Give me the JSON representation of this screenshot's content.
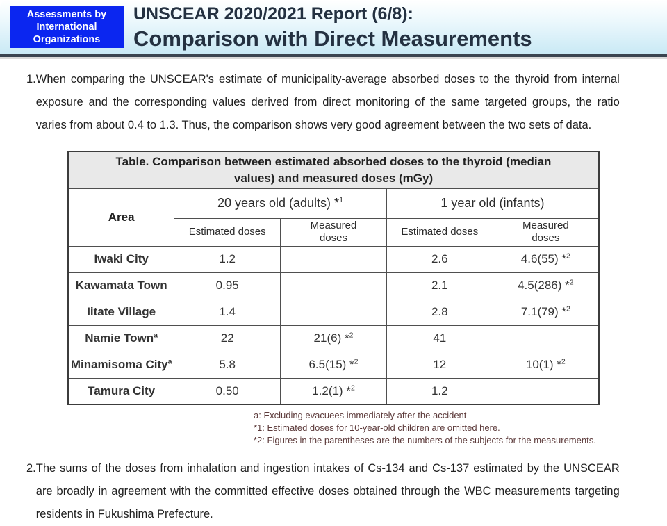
{
  "header": {
    "badge_lines": [
      "Assessments by",
      "International",
      "Organizations"
    ],
    "title_line1": "UNSCEAR 2020/2021 Report (6/8):",
    "title_line2": "Comparison with Direct Measurements"
  },
  "paragraph1": {
    "number": "1.",
    "text": "When comparing the UNSCEAR's estimate of municipality-average absorbed doses to the thyroid from internal exposure and the corresponding values derived from direct monitoring of the same targeted groups, the ratio varies from about 0.4 to 1.3. Thus, the comparison shows very good agreement between the two sets of data."
  },
  "paragraph2": {
    "number": "2.",
    "text": "The sums of the doses from inhalation and ingestion intakes of Cs-134 and Cs-137 estimated by the UNSCEAR are broadly in agreement with the committed effective doses obtained through the WBC measurements targeting residents in Fukushima Prefecture."
  },
  "table": {
    "title": "Table. Comparison between estimated absorbed doses to the thyroid (median values) and measured doses (mGy)",
    "area_label": "Area",
    "adult_header": {
      "main": "20 years old (adults) *",
      "sup": "1"
    },
    "infant_header": {
      "main": "1 year old (infants)",
      "sup": ""
    },
    "sub_headers": [
      "Estimated doses",
      "Measured\ndoses",
      "Estimated doses",
      "Measured\ndoses"
    ],
    "rows": [
      {
        "area": {
          "main": "Iwaki City",
          "sup": ""
        },
        "values": [
          {
            "main": "1.2",
            "sup": ""
          },
          {
            "main": "",
            "sup": ""
          },
          {
            "main": "2.6",
            "sup": ""
          },
          {
            "main": "4.6(55) *",
            "sup": "2"
          }
        ]
      },
      {
        "area": {
          "main": "Kawamata Town",
          "sup": ""
        },
        "values": [
          {
            "main": "0.95",
            "sup": ""
          },
          {
            "main": "",
            "sup": ""
          },
          {
            "main": "2.1",
            "sup": ""
          },
          {
            "main": "4.5(286) *",
            "sup": "2"
          }
        ]
      },
      {
        "area": {
          "main": "Iitate Village",
          "sup": ""
        },
        "values": [
          {
            "main": "1.4",
            "sup": ""
          },
          {
            "main": "",
            "sup": ""
          },
          {
            "main": "2.8",
            "sup": ""
          },
          {
            "main": "7.1(79) *",
            "sup": "2"
          }
        ]
      },
      {
        "area": {
          "main": "Namie Town",
          "sup": "a"
        },
        "values": [
          {
            "main": "22",
            "sup": ""
          },
          {
            "main": "21(6) *",
            "sup": "2"
          },
          {
            "main": "41",
            "sup": ""
          },
          {
            "main": "",
            "sup": ""
          }
        ]
      },
      {
        "area": {
          "main": "Minamisoma City",
          "sup": "a"
        },
        "values": [
          {
            "main": "5.8",
            "sup": ""
          },
          {
            "main": "6.5(15) *",
            "sup": "2"
          },
          {
            "main": "12",
            "sup": ""
          },
          {
            "main": "10(1) *",
            "sup": "2"
          }
        ]
      },
      {
        "area": {
          "main": "Tamura City",
          "sup": ""
        },
        "values": [
          {
            "main": "0.50",
            "sup": ""
          },
          {
            "main": "1.2(1) *",
            "sup": "2"
          },
          {
            "main": "1.2",
            "sup": ""
          },
          {
            "main": "",
            "sup": ""
          }
        ]
      }
    ]
  },
  "footnotes": [
    "a: Excluding evacuees immediately after the accident",
    "*1: Estimated doses for 10-year-old children are omitted here.",
    "*2: Figures in the parentheses are the numbers of the subjects for the measurements."
  ],
  "colors": {
    "badge_bg": "#0b26f0",
    "band_gradient_end": "#c9e9f5",
    "rule_dark": "#3a4450",
    "title_text": "#243141",
    "table_title_bg": "#e9e9e9",
    "footnote_text": "#5c3a3a"
  }
}
